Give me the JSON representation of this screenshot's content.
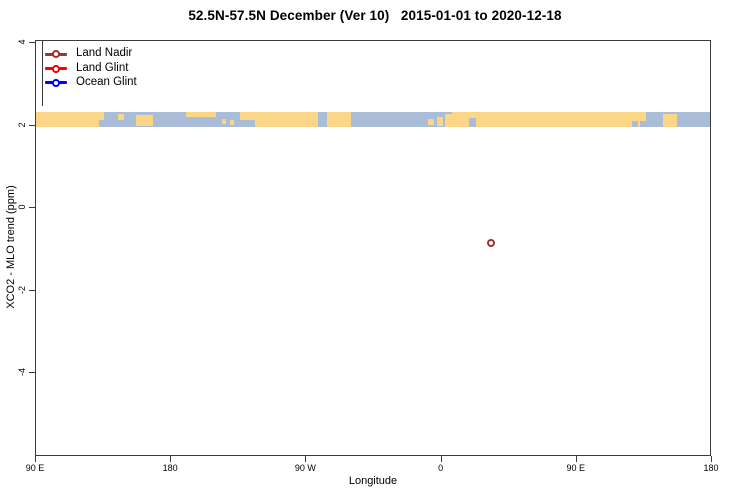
{
  "title": "52.5N-57.5N December (Ver 10)   2015-01-01 to 2020-12-18",
  "chart_data": {
    "type": "scatter",
    "title": "52.5N-57.5N December (Ver 10)   2015-01-01 to 2020-12-18",
    "xlabel": "Longitude",
    "ylabel": "XCO2 - MLO trend (ppm)",
    "grid": false,
    "legend_position": "top-left",
    "xlim": [
      90,
      540
    ],
    "ylim": [
      -6.05,
      4.05
    ],
    "x_ticks": [
      {
        "lon": 90,
        "label": "90 E"
      },
      {
        "lon": 180,
        "label": "180"
      },
      {
        "lon": 270,
        "label": "90 W"
      },
      {
        "lon": 360,
        "label": "0"
      },
      {
        "lon": 450,
        "label": "90 E"
      },
      {
        "lon": 540,
        "label": "180"
      }
    ],
    "y_ticks": [
      {
        "value": 4,
        "label": "4"
      },
      {
        "value": 2,
        "label": "2"
      },
      {
        "value": 0,
        "label": "0"
      },
      {
        "value": -2,
        "label": "-2"
      },
      {
        "value": -4,
        "label": "-4"
      }
    ],
    "series": [
      {
        "name": "Land Nadir",
        "color": "#9e332c",
        "marker": "open-circle",
        "points": [
          {
            "lon": 394,
            "lon_display": "34 E",
            "value": -0.89
          }
        ]
      },
      {
        "name": "Land Glint",
        "color": "#fe0000",
        "marker": "open-circle",
        "points": []
      },
      {
        "name": "Ocean Glint",
        "color": "#0000fe",
        "marker": "open-circle",
        "points": []
      }
    ],
    "map_strip": {
      "description": "Coastline band of latitude zone 52.5N-57.5N drawn across the plot",
      "y_top": 2.3,
      "y_bottom": 1.94,
      "land_color": "#fbd687",
      "ocean_color": "#a9bdd9",
      "land_segments": [
        [
          90,
          132,
          0,
          1
        ],
        [
          132,
          135.5,
          0,
          0.55
        ],
        [
          145,
          148.5,
          0.1,
          0.55
        ],
        [
          156.5,
          168,
          0.2,
          0.95
        ],
        [
          190,
          210,
          0,
          0.32
        ],
        [
          214,
          217,
          0.45,
          0.8
        ],
        [
          219.5,
          222.5,
          0.5,
          0.85
        ],
        [
          226.5,
          278,
          0,
          1
        ],
        [
          284,
          300.5,
          0,
          1
        ],
        [
          352,
          356,
          0.45,
          0.85
        ],
        [
          357.5,
          362,
          0.3,
          0.95
        ],
        [
          363,
          368,
          0.15,
          1
        ],
        [
          368,
          493,
          0,
          1
        ],
        [
          493,
          497.5,
          0,
          0.6
        ],
        [
          508.5,
          518,
          0.12,
          1
        ]
      ],
      "ocean_notches": [
        [
          226.5,
          236.5,
          0.5,
          1
        ],
        [
          278,
          284,
          0,
          1
        ],
        [
          379,
          383.5,
          0.4,
          1
        ],
        [
          488,
          492,
          0.6,
          1
        ]
      ]
    }
  }
}
